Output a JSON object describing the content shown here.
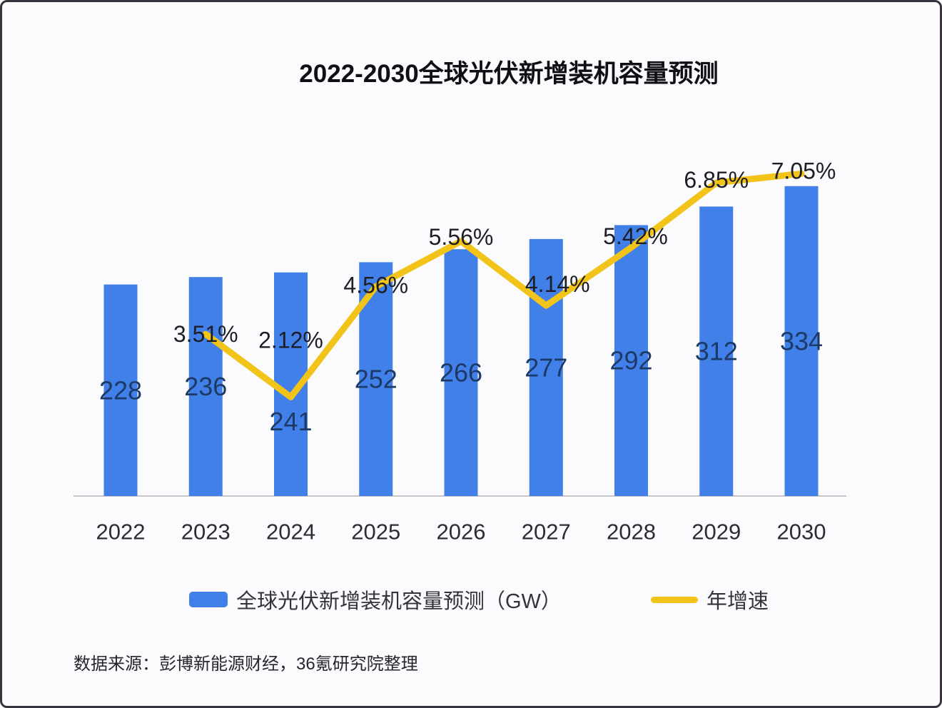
{
  "title": "2022-2030全球光伏新增装机容量预测",
  "source_note": "数据来源：彭博新能源财经，36氪研究院整理",
  "chart_data": {
    "type": "bar",
    "subtype": "bar+line combo",
    "title": "2022-2030全球光伏新增装机容量预测",
    "categories": [
      "2022",
      "2023",
      "2024",
      "2025",
      "2026",
      "2027",
      "2028",
      "2029",
      "2030"
    ],
    "series": [
      {
        "name": "全球光伏新增装机容量预测（GW）",
        "type": "bar",
        "unit": "GW",
        "color": "#4080e8",
        "label_color": "#1d3a66",
        "values": [
          228,
          236,
          241,
          252,
          266,
          277,
          292,
          312,
          334
        ]
      },
      {
        "name": "年增速",
        "type": "line",
        "unit": "%",
        "color": "#f2c318",
        "label_color": "#1d1d26",
        "values": [
          null,
          3.51,
          2.12,
          4.56,
          5.56,
          4.14,
          5.42,
          6.85,
          7.05
        ],
        "labels": [
          "3.51%",
          "2.12%",
          "4.56%",
          "5.56%",
          "4.14%",
          "5.42%",
          "6.85%",
          "7.05%"
        ]
      }
    ],
    "x_axis": {
      "labels_color": "#2c2c34",
      "line_color": "#c6c6ca"
    },
    "y_axes_hidden": true,
    "grid": false,
    "legend_position": "bottom",
    "value_labels_shown": true
  }
}
